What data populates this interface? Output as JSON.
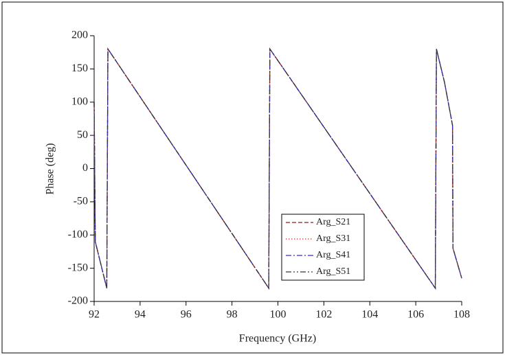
{
  "chart_data": {
    "type": "line",
    "xlabel": "Frequency (GHz)",
    "ylabel": "Phase (deg)",
    "x": [
      92,
      92.05,
      92.55,
      92.6,
      99.6,
      99.65,
      106.85,
      106.9,
      107.25,
      107.6,
      107.62,
      108
    ],
    "series": [
      {
        "name": "Arg_S21",
        "color": "#8b1a1a",
        "line_style": "dashed",
        "values": [
          100,
          -110,
          -180,
          180,
          -180,
          180,
          -180,
          180,
          130,
          65,
          -120,
          -165
        ]
      },
      {
        "name": "Arg_S31",
        "color": "#e03030",
        "line_style": "dotted",
        "values": [
          100,
          -110,
          -180,
          180,
          -180,
          180,
          -180,
          180,
          130,
          65,
          -120,
          -165
        ]
      },
      {
        "name": "Arg_S41",
        "color": "#2a2ad8",
        "line_style": "dashdot",
        "values": [
          100,
          -110,
          -180,
          180,
          -180,
          180,
          -180,
          180,
          130,
          65,
          -120,
          -165
        ]
      },
      {
        "name": "Arg_S51",
        "color": "#333333",
        "line_style": "dashdotdot",
        "values": [
          100,
          -110,
          -180,
          180,
          -180,
          180,
          -180,
          180,
          130,
          65,
          -120,
          -165
        ]
      }
    ],
    "xlim": [
      92,
      108
    ],
    "xticks": [
      92,
      94,
      96,
      98,
      100,
      102,
      104,
      106,
      108
    ],
    "ylim": [
      -200,
      200
    ],
    "yticks": [
      -200,
      -150,
      -100,
      -50,
      0,
      50,
      100,
      150,
      200
    ],
    "legend": "lower center"
  }
}
